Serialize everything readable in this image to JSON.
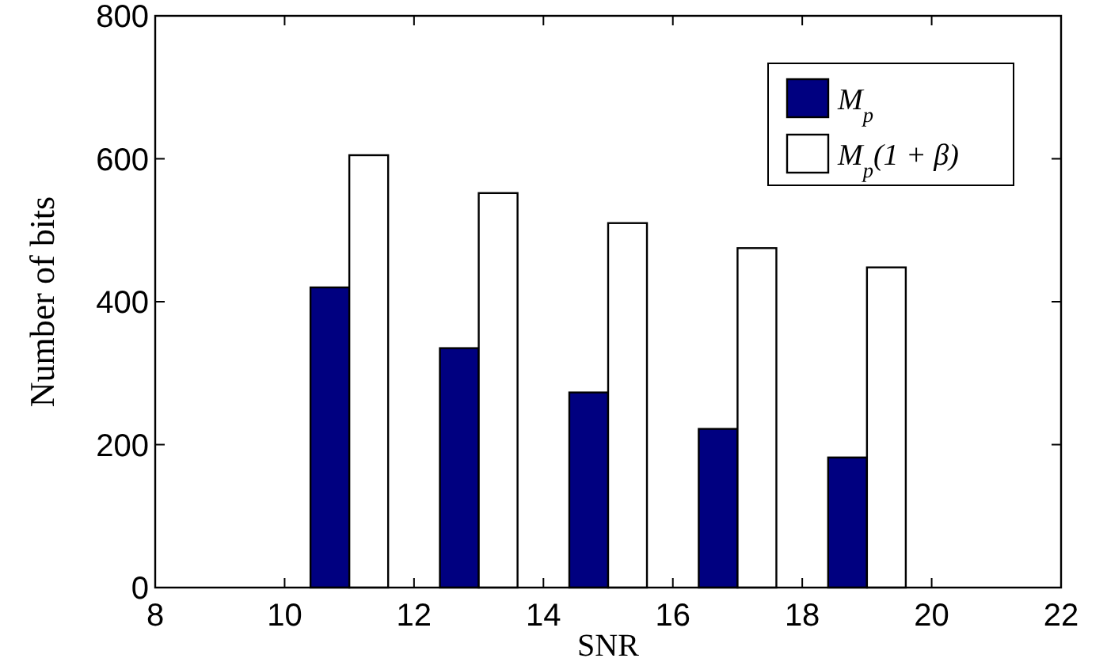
{
  "chart_data": {
    "type": "bar",
    "x": [
      11,
      13,
      15,
      17,
      19
    ],
    "xlabel": "SNR",
    "ylabel": "Number of bits",
    "series": [
      {
        "name": "M$_{p}$",
        "color": "#000080",
        "values": [
          420,
          335,
          273,
          222,
          182
        ]
      },
      {
        "name": "M$_{p}$(1 + β)",
        "color": "#ffffff",
        "values": [
          605,
          552,
          510,
          475,
          448
        ]
      }
    ],
    "xlim": [
      8,
      22
    ],
    "xticks": [
      8,
      10,
      12,
      14,
      16,
      18,
      20,
      22
    ],
    "ylim": [
      0,
      800
    ],
    "yticks": [
      0,
      200,
      400,
      600,
      800
    ],
    "legend": "top right"
  }
}
